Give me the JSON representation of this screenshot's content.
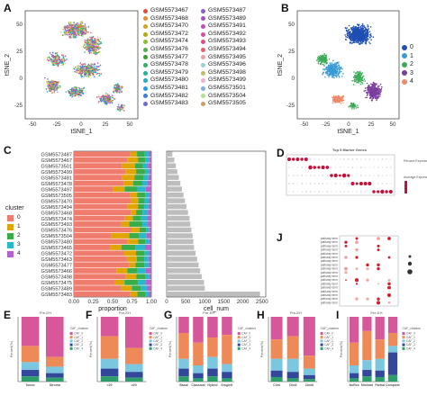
{
  "panels": {
    "A": {
      "label": "A",
      "xlabel": "tSNE_1",
      "ylabel": "tSNE_2",
      "xticks": [
        "-50",
        "-25",
        "0",
        "25",
        "50"
      ],
      "yticks": [
        "50",
        "25",
        "0",
        "-25"
      ],
      "legend": [
        "GSM5573467",
        "GSM5573468",
        "GSM5573470",
        "GSM5573472",
        "GSM5573474",
        "GSM5573476",
        "GSM5573477",
        "GSM5573478",
        "GSM5573479",
        "GSM5573480",
        "GSM5573481",
        "GSM5573482",
        "GSM5573483",
        "GSM5573487",
        "GSM5573489",
        "GSM5573491",
        "GSM5573492",
        "GSM5573493",
        "GSM5573494",
        "GSM5573495",
        "GSM5573496",
        "GSM5573498",
        "GSM5573499",
        "GSM5573501",
        "GSM5573504",
        "GSM5573505"
      ],
      "colors": [
        "#e64b35",
        "#f08a28",
        "#d9a21b",
        "#b8a800",
        "#8cbf26",
        "#4daf4a",
        "#33a02c",
        "#2cb36a",
        "#1fb59b",
        "#17b0c4",
        "#1f9fe0",
        "#3b7fd6",
        "#6a6ad8",
        "#8c5bd6",
        "#a84fd0",
        "#c44ac0",
        "#d849a8",
        "#e64a8c",
        "#f25a6e",
        "#e8a0a0",
        "#9bd0d0",
        "#c0c060",
        "#f0b0d0",
        "#80b0e0",
        "#b0e090",
        "#d0a060"
      ]
    },
    "B": {
      "label": "B",
      "xlabel": "tSNE_1",
      "ylabel": "tSNE_2",
      "xticks": [
        "-50",
        "-25",
        "0",
        "25",
        "50"
      ],
      "yticks": [
        "50",
        "25",
        "0",
        "-25"
      ],
      "legend": [
        "0",
        "1",
        "2",
        "3",
        "4"
      ],
      "colors": [
        "#1f4fb4",
        "#3a9ad6",
        "#3cab58",
        "#7a3f9e",
        "#f08a6a"
      ]
    },
    "C": {
      "label": "C",
      "xlabel": "proportion",
      "xticks": [
        "0.00",
        "0.25",
        "0.50",
        "0.75",
        "1.00"
      ],
      "legend_title": "cluster",
      "legend": [
        "0",
        "1",
        "2",
        "3",
        "4"
      ],
      "samples": [
        "GSM5573487",
        "GSM5573467",
        "GSM5573501",
        "GSM5573499",
        "GSM5573481",
        "GSM5573478",
        "GSM5573497",
        "GSM5573505",
        "GSM5573470",
        "GSM5573494",
        "GSM5573468",
        "GSM5573474",
        "GSM5573493",
        "GSM5573476",
        "GSM5573504",
        "GSM5573480",
        "GSM5573465",
        "GSM5573472",
        "GSM5573463",
        "GSM5573477",
        "GSM5573466",
        "GSM5573498",
        "GSM5573475",
        "GSM5573489",
        "GSM5573483"
      ],
      "cluster_colors": [
        "#f07c6e",
        "#e0a500",
        "#39ad4a",
        "#28b8cc",
        "#b65fcf"
      ]
    },
    "C2": {
      "xlabel": "cell_num",
      "xticks": [
        "0",
        "500",
        "1000",
        "1500",
        "2000",
        "2500"
      ],
      "cell_num": [
        2450,
        1000,
        980,
        920,
        880,
        840,
        800,
        760,
        720,
        700,
        680,
        650,
        620,
        600,
        560,
        520,
        480,
        440,
        400,
        360,
        320,
        280,
        240,
        200,
        150
      ]
    },
    "D": {
      "label": "D",
      "title": "Top 5 Marker Genes",
      "legend1": "Percent Expressed",
      "legend2": "Average Expression"
    },
    "J": {
      "label": "J"
    },
    "E": {
      "label": "E",
      "title": "Pre-EH",
      "legend_title": "CAF_clusters",
      "ylabel": "Percent(%)",
      "xticks": [
        "Tumor",
        "Stroma"
      ]
    },
    "F": {
      "label": "F",
      "title": "Pre-EH",
      "legend_title": "CAF_clusters",
      "ylabel": "Percent(%)",
      "xticks": [
        "<20",
        "≥20"
      ]
    },
    "G": {
      "label": "G",
      "title": "Pre-EH",
      "legend_title": "CAF_clusters",
      "ylabel": "Percent(%)",
      "xticks": [
        "Basal",
        "Classical",
        "Hybrid",
        "SingleK"
      ]
    },
    "H": {
      "label": "H",
      "title": "Pre-EH",
      "legend_title": "CAF_clusters",
      "ylabel": "Percent(%)",
      "xticks": [
        "ClinI",
        "ClinII",
        "ClinIII"
      ]
    },
    "I": {
      "label": "I",
      "title": "Pre-EH",
      "legend_title": "CAF_clusters",
      "ylabel": "Percent(%)",
      "xticks": [
        "NoRes",
        "Minimal",
        "Partial",
        "Complete"
      ]
    }
  },
  "caf_legend": [
    "CAF_0",
    "CAF_1",
    "CAF_2",
    "CAF_3",
    "CAF_4"
  ],
  "caf_colors": [
    "#d6589a",
    "#ed8a58",
    "#7cc7e0",
    "#33489a",
    "#2e9e6a"
  ],
  "bottom_bars": {
    "E": [
      [
        45,
        25,
        12,
        10,
        8
      ],
      [
        62,
        15,
        10,
        7,
        6
      ]
    ],
    "F": [
      [
        30,
        35,
        15,
        12,
        8
      ],
      [
        48,
        25,
        12,
        9,
        6
      ]
    ],
    "G": [
      [
        25,
        40,
        15,
        12,
        8
      ],
      [
        40,
        35,
        12,
        8,
        5
      ],
      [
        32,
        30,
        18,
        12,
        8
      ],
      [
        28,
        45,
        12,
        10,
        5
      ]
    ],
    "H": [
      [
        35,
        30,
        18,
        10,
        7
      ],
      [
        30,
        35,
        20,
        10,
        5
      ],
      [
        60,
        20,
        10,
        6,
        4
      ]
    ],
    "I": [
      [
        40,
        35,
        12,
        8,
        5
      ],
      [
        22,
        45,
        15,
        10,
        8
      ],
      [
        35,
        30,
        18,
        10,
        7
      ],
      [
        25,
        20,
        10,
        35,
        10
      ]
    ]
  }
}
